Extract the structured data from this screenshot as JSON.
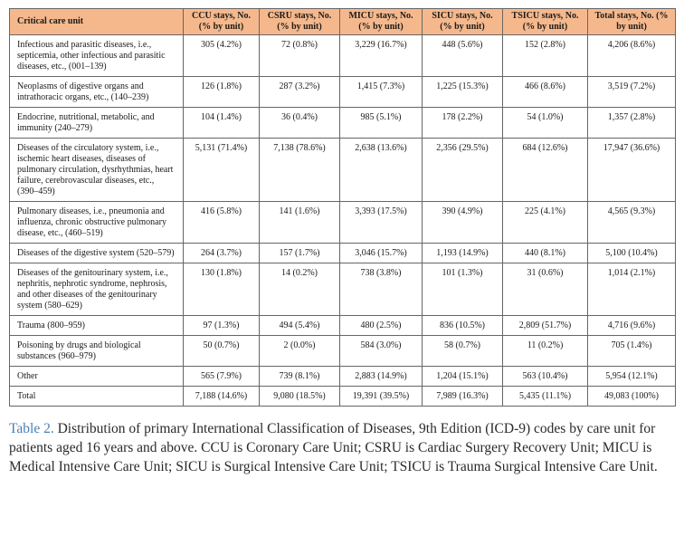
{
  "table": {
    "headers": [
      "Critical care unit",
      "CCU stays, No. (% by unit)",
      "CSRU stays, No. (% by unit)",
      "MICU stays, No. (% by unit)",
      "SICU stays, No. (% by unit)",
      "TSICU stays, No. (% by unit)",
      "Total stays, No. (% by unit)"
    ],
    "rows": [
      [
        "Infectious and parasitic diseases, i.e., septicemia, other infectious and parasitic diseases, etc., (001–139)",
        "305 (4.2%)",
        "72 (0.8%)",
        "3,229 (16.7%)",
        "448 (5.6%)",
        "152 (2.8%)",
        "4,206 (8.6%)"
      ],
      [
        "Neoplasms of digestive organs and intrathoracic organs, etc., (140–239)",
        "126 (1.8%)",
        "287 (3.2%)",
        "1,415 (7.3%)",
        "1,225 (15.3%)",
        "466 (8.6%)",
        "3,519 (7.2%)"
      ],
      [
        "Endocrine, nutritional, metabolic, and immunity (240–279)",
        "104 (1.4%)",
        "36 (0.4%)",
        "985 (5.1%)",
        "178 (2.2%)",
        "54 (1.0%)",
        "1,357 (2.8%)"
      ],
      [
        "Diseases of the circulatory system, i.e., ischemic heart diseases, diseases of pulmonary circulation, dysrhythmias, heart failure, cerebrovascular diseases, etc., (390–459)",
        "5,131 (71.4%)",
        "7,138 (78.6%)",
        "2,638 (13.6%)",
        "2,356 (29.5%)",
        "684 (12.6%)",
        "17,947 (36.6%)"
      ],
      [
        "Pulmonary diseases, i.e., pneumonia and influenza, chronic obstructive pulmonary disease, etc., (460–519)",
        "416 (5.8%)",
        "141 (1.6%)",
        "3,393 (17.5%)",
        "390 (4.9%)",
        "225 (4.1%)",
        "4,565 (9.3%)"
      ],
      [
        "Diseases of the digestive system (520–579)",
        "264 (3.7%)",
        "157 (1.7%)",
        "3,046 (15.7%)",
        "1,193 (14.9%)",
        "440 (8.1%)",
        "5,100 (10.4%)"
      ],
      [
        "Diseases of the genitourinary system, i.e., nephritis, nephrotic syndrome, nephrosis, and other diseases of the genitourinary system (580–629)",
        "130 (1.8%)",
        "14 (0.2%)",
        "738 (3.8%)",
        "101 (1.3%)",
        "31 (0.6%)",
        "1,014 (2.1%)"
      ],
      [
        "Trauma (800–959)",
        "97 (1.3%)",
        "494 (5.4%)",
        "480 (2.5%)",
        "836 (10.5%)",
        "2,809 (51.7%)",
        "4,716 (9.6%)"
      ],
      [
        "Poisoning by drugs and biological substances (960–979)",
        "50 (0.7%)",
        "2 (0.0%)",
        "584 (3.0%)",
        "58 (0.7%)",
        "11 (0.2%)",
        "705 (1.4%)"
      ],
      [
        "Other",
        "565 (7.9%)",
        "739 (8.1%)",
        "2,883 (14.9%)",
        "1,204 (15.1%)",
        "563 (10.4%)",
        "5,954 (12.1%)"
      ],
      [
        "Total",
        "7,188 (14.6%)",
        "9,080 (18.5%)",
        "19,391 (39.5%)",
        "7,989 (16.3%)",
        "5,435 (11.1%)",
        "49,083 (100%)"
      ]
    ]
  },
  "caption": {
    "label": "Table 2.",
    "text": " Distribution of primary International Classification of Diseases, 9th Edition (ICD-9) codes by care unit for patients aged 16 years and above. CCU is Coronary Care Unit; CSRU is Cardiac Surgery Recovery Unit; MICU is Medical Intensive Care Unit; SICU is Surgical Intensive Care Unit; TSICU is Trauma Surgical Intensive Care Unit."
  },
  "colors": {
    "header_bg": "#f5b88c",
    "caption_label": "#4a7fb8"
  }
}
